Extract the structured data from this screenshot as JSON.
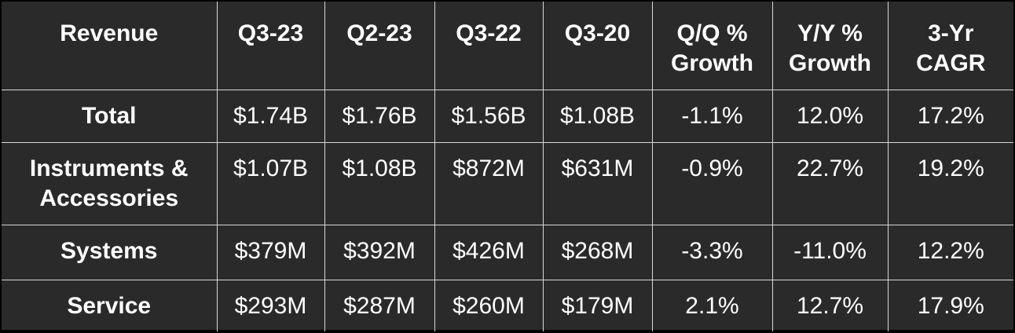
{
  "table": {
    "header": [
      "Revenue",
      "Q3-23",
      "Q2-23",
      "Q3-22",
      "Q3-20",
      "Q/Q % Growth",
      "Y/Y % Growth",
      "3-Yr CAGR"
    ],
    "rows": [
      [
        "Total",
        "$1.74B",
        "$1.76B",
        "$1.56B",
        "$1.08B",
        "-1.1%",
        "12.0%",
        "17.2%"
      ],
      [
        "Instruments & Accessories",
        "$1.07B",
        "$1.08B",
        "$872M",
        "$631M",
        "-0.9%",
        "22.7%",
        "19.2%"
      ],
      [
        "Systems",
        "$379M",
        "$392M",
        "$426M",
        "$268M",
        "-3.3%",
        "-11.0%",
        "12.2%"
      ],
      [
        "Service",
        "$293M",
        "$287M",
        "$260M",
        "$179M",
        "2.1%",
        "12.7%",
        "17.9%"
      ]
    ]
  }
}
